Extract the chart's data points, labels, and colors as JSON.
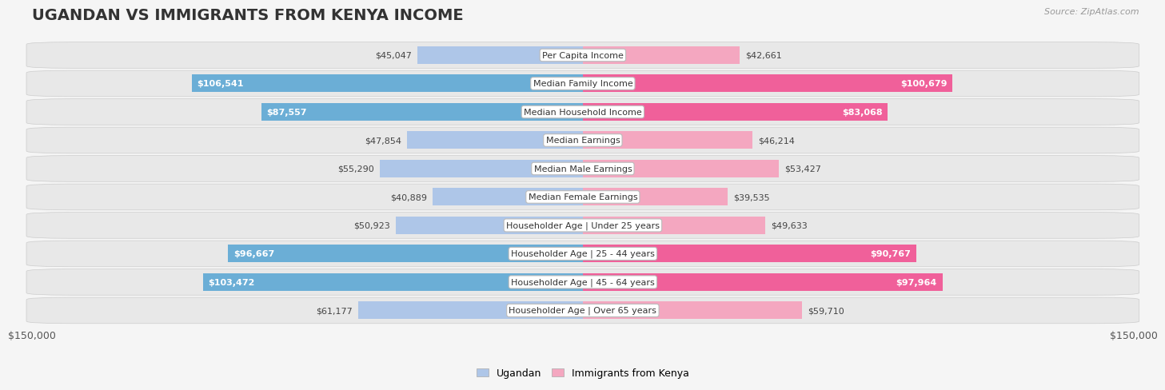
{
  "title": "UGANDAN VS IMMIGRANTS FROM KENYA INCOME",
  "source": "Source: ZipAtlas.com",
  "categories": [
    "Per Capita Income",
    "Median Family Income",
    "Median Household Income",
    "Median Earnings",
    "Median Male Earnings",
    "Median Female Earnings",
    "Householder Age | Under 25 years",
    "Householder Age | 25 - 44 years",
    "Householder Age | 45 - 64 years",
    "Householder Age | Over 65 years"
  ],
  "ugandan_values": [
    45047,
    106541,
    87557,
    47854,
    55290,
    40889,
    50923,
    96667,
    103472,
    61177
  ],
  "kenya_values": [
    42661,
    100679,
    83068,
    46214,
    53427,
    39535,
    49633,
    90767,
    97964,
    59710
  ],
  "ugandan_color_low": "#aec6e8",
  "ugandan_color_high": "#6baed6",
  "kenya_color_low": "#f4a7c0",
  "kenya_color_high": "#f0609a",
  "max_value": 150000,
  "x_tick_label": "$150,000",
  "background_color": "#f5f5f5",
  "row_light_color": "#e8e8e8",
  "row_dark_color": "#d8d8d8",
  "bar_height": 0.62,
  "threshold_for_white_label": 80000,
  "ugandan_legend": "Ugandan",
  "kenya_legend": "Immigrants from Kenya",
  "title_fontsize": 14,
  "label_fontsize": 8,
  "value_fontsize": 8
}
